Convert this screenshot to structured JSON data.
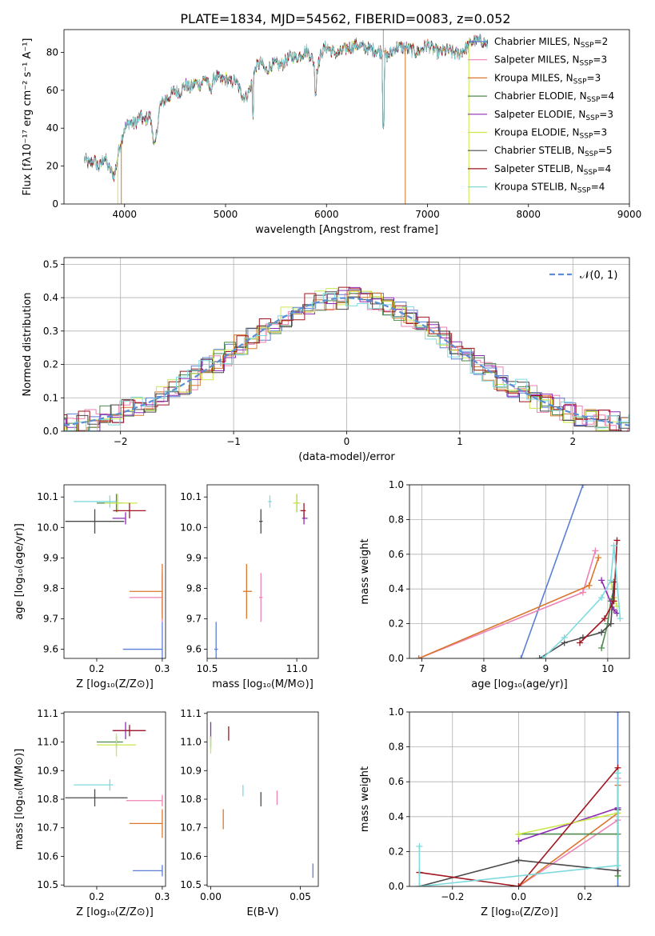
{
  "title": "PLATE=1834, MJD=54562, FIBERID=0083, z=0.052",
  "colors": {
    "chabrier_miles": "#5b7fd6",
    "salpeter_miles": "#ee82b4",
    "kroupa_miles": "#d9782d",
    "chabrier_elodie": "#4e8a4e",
    "salpeter_elodie": "#8e2bb5",
    "kroupa_elodie": "#c9e84a",
    "chabrier_stelib": "#4a4a4a",
    "salpeter_stelib": "#a11621",
    "kroupa_stelib": "#7fdade",
    "normal_curve": "#5b8ed6",
    "grid": "#b0b0b0"
  },
  "chart_data": [
    {
      "id": "spectrum",
      "type": "line",
      "xlabel": "wavelength [Angstrom, rest frame]",
      "ylabel": "Flux [fλ10⁻¹⁷ erg cm⁻² s⁻¹ A⁻¹]",
      "xlim": [
        3400,
        9000
      ],
      "ylim": [
        0,
        92
      ],
      "grid": false,
      "legend_position": "right",
      "xticks": [
        "4000",
        "5000",
        "6000",
        "7000",
        "8000",
        "9000"
      ],
      "yticks": [
        "0",
        "20",
        "40",
        "60",
        "80"
      ],
      "legend": [
        {
          "name": "Chabrier MILES, N",
          "sub": "SSP",
          "suffix": "=2",
          "color_key": "chabrier_miles"
        },
        {
          "name": "Salpeter MILES, N",
          "sub": "SSP",
          "suffix": "=3",
          "color_key": "salpeter_miles"
        },
        {
          "name": "Kroupa MILES, N",
          "sub": "SSP",
          "suffix": "=3",
          "color_key": "kroupa_miles"
        },
        {
          "name": "Chabrier ELODIE, N",
          "sub": "SSP",
          "suffix": "=4",
          "color_key": "chabrier_elodie"
        },
        {
          "name": "Salpeter ELODIE, N",
          "sub": "SSP",
          "suffix": "=3",
          "color_key": "salpeter_elodie"
        },
        {
          "name": "Kroupa ELODIE, N",
          "sub": "SSP",
          "suffix": "=3",
          "color_key": "kroupa_elodie"
        },
        {
          "name": "Chabrier STELIB, N",
          "sub": "SSP",
          "suffix": "=5",
          "color_key": "chabrier_stelib"
        },
        {
          "name": "Salpeter STELIB, N",
          "sub": "SSP",
          "suffix": "=4",
          "color_key": "salpeter_stelib"
        },
        {
          "name": "Kroupa STELIB, N",
          "sub": "SSP",
          "suffix": "=4",
          "color_key": "kroupa_stelib"
        }
      ],
      "envelope": {
        "x": [
          3600,
          3650,
          3700,
          3750,
          3800,
          3850,
          3900,
          3950,
          4000,
          4050,
          4100,
          4150,
          4200,
          4250,
          4300,
          4350,
          4400,
          4450,
          4500,
          4550,
          4600,
          4650,
          4700,
          4750,
          4800,
          4850,
          4900,
          4950,
          5000,
          5050,
          5100,
          5150,
          5200,
          5250,
          5300,
          5350,
          5400,
          5450,
          5500,
          5550,
          5600,
          5650,
          5700,
          5750,
          5800,
          5850,
          5900,
          5950,
          6000,
          6100,
          6200,
          6300,
          6400,
          6500,
          6560,
          6600,
          6700,
          6800,
          6900,
          7000,
          7100,
          7200,
          7300,
          7400,
          7450,
          7500,
          7550,
          7600
        ],
        "y": [
          24,
          21,
          23,
          19,
          25,
          18,
          15,
          30,
          40,
          43,
          42,
          46,
          44,
          47,
          30,
          52,
          55,
          57,
          60,
          59,
          63,
          61,
          64,
          63,
          67,
          60,
          68,
          65,
          66,
          64,
          65,
          59,
          56,
          62,
          72,
          75,
          70,
          73,
          74,
          73,
          76,
          78,
          77,
          79,
          81,
          78,
          70,
          80,
          83,
          79,
          82,
          84,
          82,
          81,
          80,
          78,
          83,
          82,
          80,
          84,
          80,
          81,
          79,
          83,
          86,
          86,
          86,
          84
        ]
      },
      "absorption_features": [
        {
          "x": 3933,
          "depth_to": 0
        },
        {
          "x": 3968,
          "depth_to": 0
        },
        {
          "x": 4300,
          "depth_to": 30
        },
        {
          "x": 5175,
          "depth_to": 55
        },
        {
          "x": 5270,
          "depth_to": 45
        },
        {
          "x": 5893,
          "depth_to": 57
        },
        {
          "x": 6563,
          "depth_to": 40
        },
        {
          "x": 6780,
          "depth_to": 0
        },
        {
          "x": 7410,
          "depth_to": 0
        }
      ]
    },
    {
      "id": "residuals",
      "type": "line",
      "xlabel": "(data-model)/error",
      "ylabel": "Normed distribution",
      "xlim": [
        -2.5,
        2.5
      ],
      "ylim": [
        0,
        0.52
      ],
      "grid": true,
      "legend_position": "top-right",
      "xticks": [
        "−2",
        "−1",
        "0",
        "1",
        "2"
      ],
      "yticks": [
        "0.0",
        "0.1",
        "0.2",
        "0.3",
        "0.4",
        "0.5"
      ],
      "legend": [
        {
          "name": "𝒩(0, 1)",
          "color_key": "normal_curve"
        }
      ],
      "normal_curve": {
        "mu": 0,
        "sigma": 1
      }
    },
    {
      "id": "age_vs_Z",
      "type": "scatter",
      "xlabel": "Z [log₁₀(Z/Z⊙)]",
      "ylabel": "age  [log₁₀(age/yr)]",
      "xlim": [
        0.15,
        0.305
      ],
      "ylim": [
        9.57,
        10.14
      ],
      "grid": false,
      "xticks": [
        "0.2",
        "0.3"
      ],
      "yticks": [
        "9.6",
        "9.7",
        "9.8",
        "9.9",
        "10.0",
        "10.1"
      ],
      "points": [
        {
          "color_key": "chabrier_miles",
          "x": 0.3,
          "y": 9.6,
          "xerr": [
            0.06,
            0.0
          ],
          "yerr": 0.09
        },
        {
          "color_key": "salpeter_miles",
          "x": 0.3,
          "y": 9.77,
          "xerr": [
            0.05,
            0.0
          ],
          "yerr": 0.08
        },
        {
          "color_key": "kroupa_miles",
          "x": 0.3,
          "y": 9.79,
          "xerr": [
            0.05,
            0.0
          ],
          "yerr": 0.09
        },
        {
          "color_key": "chabrier_elodie",
          "x": 0.23,
          "y": 10.08,
          "xerr": [
            0.03,
            0.01
          ],
          "yerr": 0.03
        },
        {
          "color_key": "salpeter_elodie",
          "x": 0.244,
          "y": 10.03,
          "xerr": [
            0.02,
            0.0
          ],
          "yerr": 0.02
        },
        {
          "color_key": "kroupa_elodie",
          "x": 0.232,
          "y": 10.08,
          "xerr": [
            0.02,
            0.03
          ],
          "yerr": 0.03
        },
        {
          "color_key": "chabrier_stelib",
          "x": 0.197,
          "y": 10.02,
          "xerr": [
            0.045,
            0.045
          ],
          "yerr": 0.04
        },
        {
          "color_key": "salpeter_stelib",
          "x": 0.25,
          "y": 10.055,
          "xerr": [
            0.025,
            0.025
          ],
          "yerr": 0.025
        },
        {
          "color_key": "kroupa_stelib",
          "x": 0.22,
          "y": 10.085,
          "xerr": [
            0.055,
            0.01
          ],
          "yerr": 0.02
        }
      ]
    },
    {
      "id": "age_vs_mass",
      "type": "scatter",
      "xlabel": "mass [log₁₀(M/M⊙)]",
      "ylabel": "",
      "xlim": [
        10.5,
        11.12
      ],
      "ylim": [
        9.57,
        10.14
      ],
      "grid": false,
      "xticks": [
        "10.5",
        "11.0"
      ],
      "yticks": [
        "9.6",
        "9.7",
        "9.8",
        "9.9",
        "10.0",
        "10.1"
      ],
      "points": [
        {
          "color_key": "chabrier_miles",
          "x": 10.55,
          "y": 9.6,
          "xerr": [
            0.01,
            0.01
          ],
          "yerr": 0.09
        },
        {
          "color_key": "salpeter_miles",
          "x": 10.8,
          "y": 9.77,
          "xerr": [
            0.01,
            0.01
          ],
          "yerr": 0.08
        },
        {
          "color_key": "kroupa_miles",
          "x": 10.72,
          "y": 9.79,
          "xerr": [
            0.02,
            0.03
          ],
          "yerr": 0.09
        },
        {
          "color_key": "chabrier_elodie",
          "x": 11.0,
          "y": 10.08,
          "xerr": [
            0.01,
            0.01
          ],
          "yerr": 0.03
        },
        {
          "color_key": "salpeter_elodie",
          "x": 11.04,
          "y": 10.03,
          "xerr": [
            0.01,
            0.02
          ],
          "yerr": 0.02
        },
        {
          "color_key": "kroupa_elodie",
          "x": 11.0,
          "y": 10.08,
          "xerr": [
            0.02,
            0.02
          ],
          "yerr": 0.03
        },
        {
          "color_key": "chabrier_stelib",
          "x": 10.8,
          "y": 10.02,
          "xerr": [
            0.01,
            0.01
          ],
          "yerr": 0.04
        },
        {
          "color_key": "salpeter_stelib",
          "x": 11.04,
          "y": 10.055,
          "xerr": [
            0.02,
            0.01
          ],
          "yerr": 0.025
        },
        {
          "color_key": "kroupa_stelib",
          "x": 10.85,
          "y": 10.085,
          "xerr": [
            0.01,
            0.01
          ],
          "yerr": 0.02
        }
      ]
    },
    {
      "id": "massweight_vs_age",
      "type": "line",
      "xlabel": "age  [log₁₀(age/yr)]",
      "ylabel": "mass weight",
      "xlim": [
        6.8,
        10.35
      ],
      "ylim": [
        0,
        1.0
      ],
      "grid": true,
      "xticks": [
        "7",
        "8",
        "9",
        "10"
      ],
      "yticks": [
        "0.0",
        "0.2",
        "0.4",
        "0.6",
        "0.8",
        "1.0"
      ],
      "series": [
        {
          "color_key": "chabrier_miles",
          "x": [
            8.6,
            9.6
          ],
          "y": [
            0.0,
            1.0
          ]
        },
        {
          "color_key": "salpeter_miles",
          "x": [
            6.95,
            9.6,
            9.8
          ],
          "y": [
            0.0,
            0.38,
            0.62
          ]
        },
        {
          "color_key": "kroupa_miles",
          "x": [
            6.95,
            9.7,
            9.85
          ],
          "y": [
            0.0,
            0.42,
            0.58
          ]
        },
        {
          "color_key": "chabrier_elodie",
          "x": [
            9.9,
            10.0,
            10.05,
            10.1
          ],
          "y": [
            0.06,
            0.2,
            0.33,
            0.4
          ]
        },
        {
          "color_key": "salpeter_elodie",
          "x": [
            9.9,
            10.1,
            10.15
          ],
          "y": [
            0.45,
            0.28,
            0.26
          ]
        },
        {
          "color_key": "kroupa_elodie",
          "x": [
            10.05,
            10.1,
            10.15
          ],
          "y": [
            0.45,
            0.35,
            0.3
          ]
        },
        {
          "color_key": "chabrier_stelib",
          "x": [
            8.9,
            9.3,
            9.6,
            9.9,
            10.05,
            10.1
          ],
          "y": [
            0.0,
            0.09,
            0.12,
            0.15,
            0.2,
            0.44
          ]
        },
        {
          "color_key": "salpeter_stelib",
          "x": [
            9.55,
            9.95,
            10.1,
            10.15
          ],
          "y": [
            0.09,
            0.23,
            0.33,
            0.68
          ]
        },
        {
          "color_key": "kroupa_stelib",
          "x": [
            8.95,
            9.3,
            9.9,
            10.05,
            10.1,
            10.2
          ],
          "y": [
            0.0,
            0.12,
            0.35,
            0.45,
            0.65,
            0.23
          ]
        }
      ]
    },
    {
      "id": "mass_vs_Z",
      "type": "scatter",
      "xlabel": "Z [log₁₀(Z/Z⊙)]",
      "ylabel": "mass [log₁₀(M/M⊙)]",
      "xlim": [
        0.15,
        0.305
      ],
      "ylim": [
        10.495,
        11.105
      ],
      "grid": false,
      "xticks": [
        "0.2",
        "0.3"
      ],
      "yticks": [
        "10.5",
        "10.6",
        "10.7",
        "10.8",
        "10.9",
        "11.0",
        "11.1"
      ],
      "points": [
        {
          "color_key": "chabrier_miles",
          "x": 0.3,
          "y": 10.55,
          "xerr": [
            0.045,
            0.0
          ],
          "yerr": 0.02
        },
        {
          "color_key": "salpeter_miles",
          "x": 0.3,
          "y": 10.795,
          "xerr": [
            0.055,
            0.0
          ],
          "yerr": 0.02
        },
        {
          "color_key": "kroupa_miles",
          "x": 0.3,
          "y": 10.715,
          "xerr": [
            0.05,
            0.0
          ],
          "yerr": 0.05
        },
        {
          "color_key": "chabrier_elodie",
          "x": 0.23,
          "y": 11.0,
          "xerr": [
            0.03,
            0.01
          ],
          "yerr": 0.02
        },
        {
          "color_key": "salpeter_elodie",
          "x": 0.244,
          "y": 11.04,
          "xerr": [
            0.02,
            0.03
          ],
          "yerr": 0.03
        },
        {
          "color_key": "kroupa_elodie",
          "x": 0.23,
          "y": 10.99,
          "xerr": [
            0.03,
            0.03
          ],
          "yerr": 0.04
        },
        {
          "color_key": "chabrier_stelib",
          "x": 0.197,
          "y": 10.805,
          "xerr": [
            0.045,
            0.05
          ],
          "yerr": 0.03
        },
        {
          "color_key": "salpeter_stelib",
          "x": 0.25,
          "y": 11.04,
          "xerr": [
            0.025,
            0.025
          ],
          "yerr": 0.02
        },
        {
          "color_key": "kroupa_stelib",
          "x": 0.22,
          "y": 10.85,
          "xerr": [
            0.055,
            0.005
          ],
          "yerr": 0.02
        }
      ]
    },
    {
      "id": "mass_vs_ebv",
      "type": "scatter",
      "xlabel": "E(B-V)",
      "ylabel": "",
      "xlim": [
        -0.002,
        0.06
      ],
      "ylim": [
        10.495,
        11.105
      ],
      "grid": false,
      "xticks": [
        "0.00",
        "0.05"
      ],
      "yticks": [
        "10.5",
        "10.6",
        "10.7",
        "10.8",
        "10.9",
        "11.0",
        "11.1"
      ],
      "points": [
        {
          "color_key": "chabrier_miles",
          "x": 0.057,
          "y": 10.55,
          "xerr": [
            0,
            0
          ],
          "yerr": 0.025
        },
        {
          "color_key": "salpeter_miles",
          "x": 0.037,
          "y": 10.805,
          "xerr": [
            0,
            0
          ],
          "yerr": 0.025
        },
        {
          "color_key": "kroupa_miles",
          "x": 0.007,
          "y": 10.73,
          "xerr": [
            0,
            0
          ],
          "yerr": 0.035
        },
        {
          "color_key": "chabrier_elodie",
          "x": 0.0,
          "y": 11.0,
          "xerr": [
            0,
            0
          ],
          "yerr": 0.02
        },
        {
          "color_key": "salpeter_elodie",
          "x": 0.0,
          "y": 11.04,
          "xerr": [
            0,
            0
          ],
          "yerr": 0.03
        },
        {
          "color_key": "kroupa_elodie",
          "x": 0.0,
          "y": 10.99,
          "xerr": [
            0,
            0
          ],
          "yerr": 0.03
        },
        {
          "color_key": "chabrier_stelib",
          "x": 0.028,
          "y": 10.8,
          "xerr": [
            0,
            0
          ],
          "yerr": 0.025
        },
        {
          "color_key": "salpeter_stelib",
          "x": 0.01,
          "y": 11.03,
          "xerr": [
            0,
            0
          ],
          "yerr": 0.025
        },
        {
          "color_key": "kroupa_stelib",
          "x": 0.018,
          "y": 10.83,
          "xerr": [
            0,
            0
          ],
          "yerr": 0.02
        }
      ]
    },
    {
      "id": "massweight_vs_Z",
      "type": "line",
      "xlabel": "Z [log₁₀(Z/Z⊙)]",
      "ylabel": "mass weight",
      "xlim": [
        -0.33,
        0.335
      ],
      "ylim": [
        0,
        1.0
      ],
      "grid": true,
      "xticks": [
        "−0.2",
        "0.0",
        "0.2"
      ],
      "yticks": [
        "0.0",
        "0.2",
        "0.4",
        "0.6",
        "0.8",
        "1.0"
      ],
      "series": [
        {
          "color_key": "chabrier_miles",
          "x": [
            0.3,
            0.3
          ],
          "y": [
            0.0,
            1.0
          ]
        },
        {
          "color_key": "salpeter_miles",
          "x": [
            0.0,
            0.3,
            0.3
          ],
          "y": [
            0.0,
            0.38,
            0.62
          ]
        },
        {
          "color_key": "kroupa_miles",
          "x": [
            0.0,
            0.3,
            0.3
          ],
          "y": [
            0.0,
            0.42,
            0.58
          ]
        },
        {
          "color_key": "chabrier_elodie",
          "x": [
            0.0,
            0.3,
            0.3
          ],
          "y": [
            0.3,
            0.3,
            0.06
          ]
        },
        {
          "color_key": "salpeter_elodie",
          "x": [
            0.0,
            0.3
          ],
          "y": [
            0.26,
            0.45
          ]
        },
        {
          "color_key": "kroupa_elodie",
          "x": [
            0.0,
            0.3
          ],
          "y": [
            0.3,
            0.42
          ]
        },
        {
          "color_key": "chabrier_stelib",
          "x": [
            -0.3,
            0.0,
            0.3,
            0.3
          ],
          "y": [
            0.0,
            0.15,
            0.09,
            0.44
          ]
        },
        {
          "color_key": "salpeter_stelib",
          "x": [
            -0.3,
            0.0,
            0.3
          ],
          "y": [
            0.08,
            0.0,
            0.68
          ]
        },
        {
          "color_key": "kroupa_stelib",
          "x": [
            -0.3,
            -0.3,
            0.3,
            0.3
          ],
          "y": [
            0.23,
            0.0,
            0.12,
            0.65
          ]
        }
      ]
    }
  ]
}
